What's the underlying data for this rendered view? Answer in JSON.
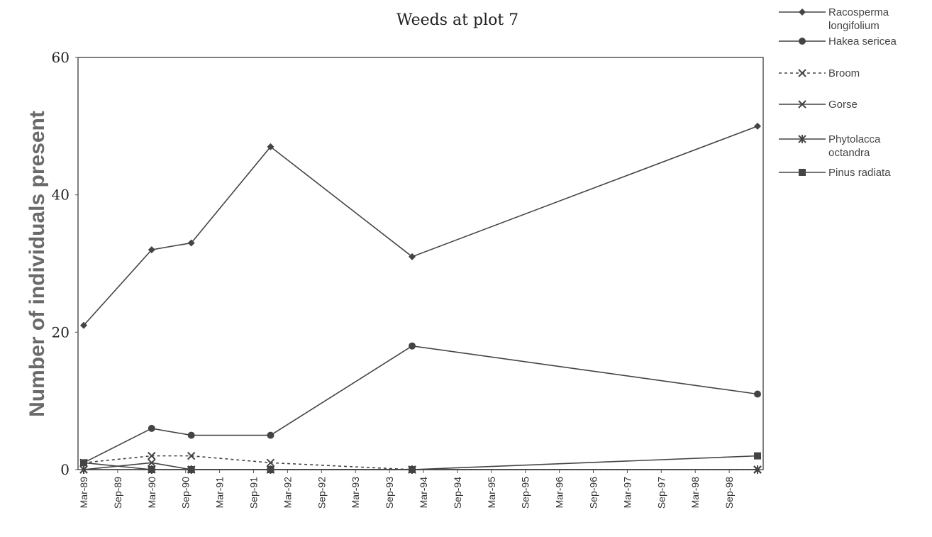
{
  "chart_data": {
    "type": "line",
    "title": "Weeds at plot 7",
    "xlabel": "",
    "ylabel": "Number of individuals present",
    "ylim": [
      0,
      60
    ],
    "yticks": [
      0,
      20,
      40,
      60
    ],
    "xlim": [
      "1989-03",
      "1999-03"
    ],
    "xticks": [
      "Mar-89",
      "Sep-89",
      "Mar-90",
      "Sep-90",
      "Mar-91",
      "Sep-91",
      "Mar-92",
      "Sep-92",
      "Mar-93",
      "Sep-93",
      "Mar-94",
      "Sep-94",
      "Mar-95",
      "Sep-95",
      "Mar-96",
      "Sep-96",
      "Mar-97",
      "Sep-97",
      "Mar-98",
      "Sep-98"
    ],
    "grid": false,
    "legend_position": "top-right",
    "series": [
      {
        "name": "Racosperma longifolium",
        "marker": "diamond",
        "dash": false,
        "points": [
          [
            "1989-03",
            21
          ],
          [
            "1990-03",
            32
          ],
          [
            "1990-10",
            33
          ],
          [
            "1991-12",
            47
          ],
          [
            "1994-01",
            31
          ],
          [
            "1999-02",
            50
          ]
        ]
      },
      {
        "name": "Hakea sericea",
        "marker": "circle",
        "dash": false,
        "points": [
          [
            "1989-03",
            1
          ],
          [
            "1990-03",
            6
          ],
          [
            "1990-10",
            5
          ],
          [
            "1991-12",
            5
          ],
          [
            "1994-01",
            18
          ],
          [
            "1999-02",
            11
          ]
        ]
      },
      {
        "name": "Broom",
        "marker": "x",
        "dash": true,
        "points": [
          [
            "1989-03",
            1
          ],
          [
            "1990-03",
            2
          ],
          [
            "1990-10",
            2
          ],
          [
            "1991-12",
            1
          ],
          [
            "1994-01",
            0
          ],
          [
            "1999-02",
            0
          ]
        ]
      },
      {
        "name": "Gorse",
        "marker": "x",
        "dash": false,
        "points": [
          [
            "1989-03",
            0
          ],
          [
            "1990-03",
            1
          ],
          [
            "1990-10",
            0
          ],
          [
            "1991-12",
            0
          ],
          [
            "1994-01",
            0
          ],
          [
            "1999-02",
            0
          ]
        ]
      },
      {
        "name": "Phytolacca octandra",
        "marker": "star",
        "dash": false,
        "points": [
          [
            "1989-03",
            0
          ],
          [
            "1990-03",
            0
          ],
          [
            "1990-10",
            0
          ],
          [
            "1991-12",
            0
          ],
          [
            "1994-01",
            0
          ],
          [
            "1999-02",
            0
          ]
        ]
      },
      {
        "name": "Pinus radiata",
        "marker": "square",
        "dash": false,
        "points": [
          [
            "1989-03",
            1
          ],
          [
            "1990-03",
            0
          ],
          [
            "1990-10",
            0
          ],
          [
            "1991-12",
            0
          ],
          [
            "1994-01",
            0
          ],
          [
            "1999-02",
            2
          ]
        ]
      }
    ],
    "legend": [
      [
        "Racosperma",
        "longifolium"
      ],
      [
        "Hakea sericea"
      ],
      [
        "Broom"
      ],
      [
        "Gorse"
      ],
      [
        "Phytolacca",
        "octandra"
      ],
      [
        "Pinus radiata"
      ]
    ]
  }
}
